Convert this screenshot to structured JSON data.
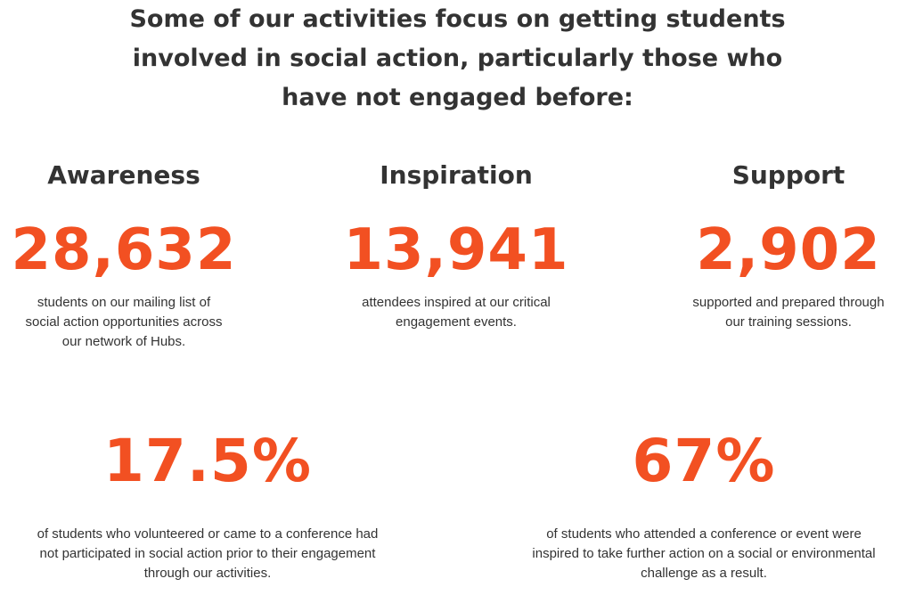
{
  "headline": {
    "line1": "Some of our activities focus on getting students",
    "line2": "involved in social action, particularly those who",
    "line3": "have not engaged before:"
  },
  "columns": [
    {
      "title": "Awareness",
      "stat": "28,632",
      "desc_lines": [
        "students on our mailing list of",
        "social action opportunities across",
        "our network of Hubs."
      ]
    },
    {
      "title": "Inspiration",
      "stat": "13,941",
      "desc_lines": [
        "attendees inspired at our critical",
        "engagement events."
      ]
    },
    {
      "title": "Support",
      "stat": "2,902",
      "desc_lines": [
        "supported and prepared through",
        "our training sessions."
      ]
    }
  ],
  "bottom_stats": [
    {
      "stat": "17.5%",
      "desc_lines": [
        "of students who volunteered or came to a conference had",
        "not participated in social action prior to their engagement",
        "through our activities."
      ]
    },
    {
      "stat": "67%",
      "desc_lines": [
        "of students who attended a conference or event were",
        "inspired to take further action on a social or environmental",
        "challenge as a result."
      ]
    }
  ],
  "colors": {
    "accent": "#f25022",
    "text": "#333333",
    "background": "#ffffff"
  }
}
